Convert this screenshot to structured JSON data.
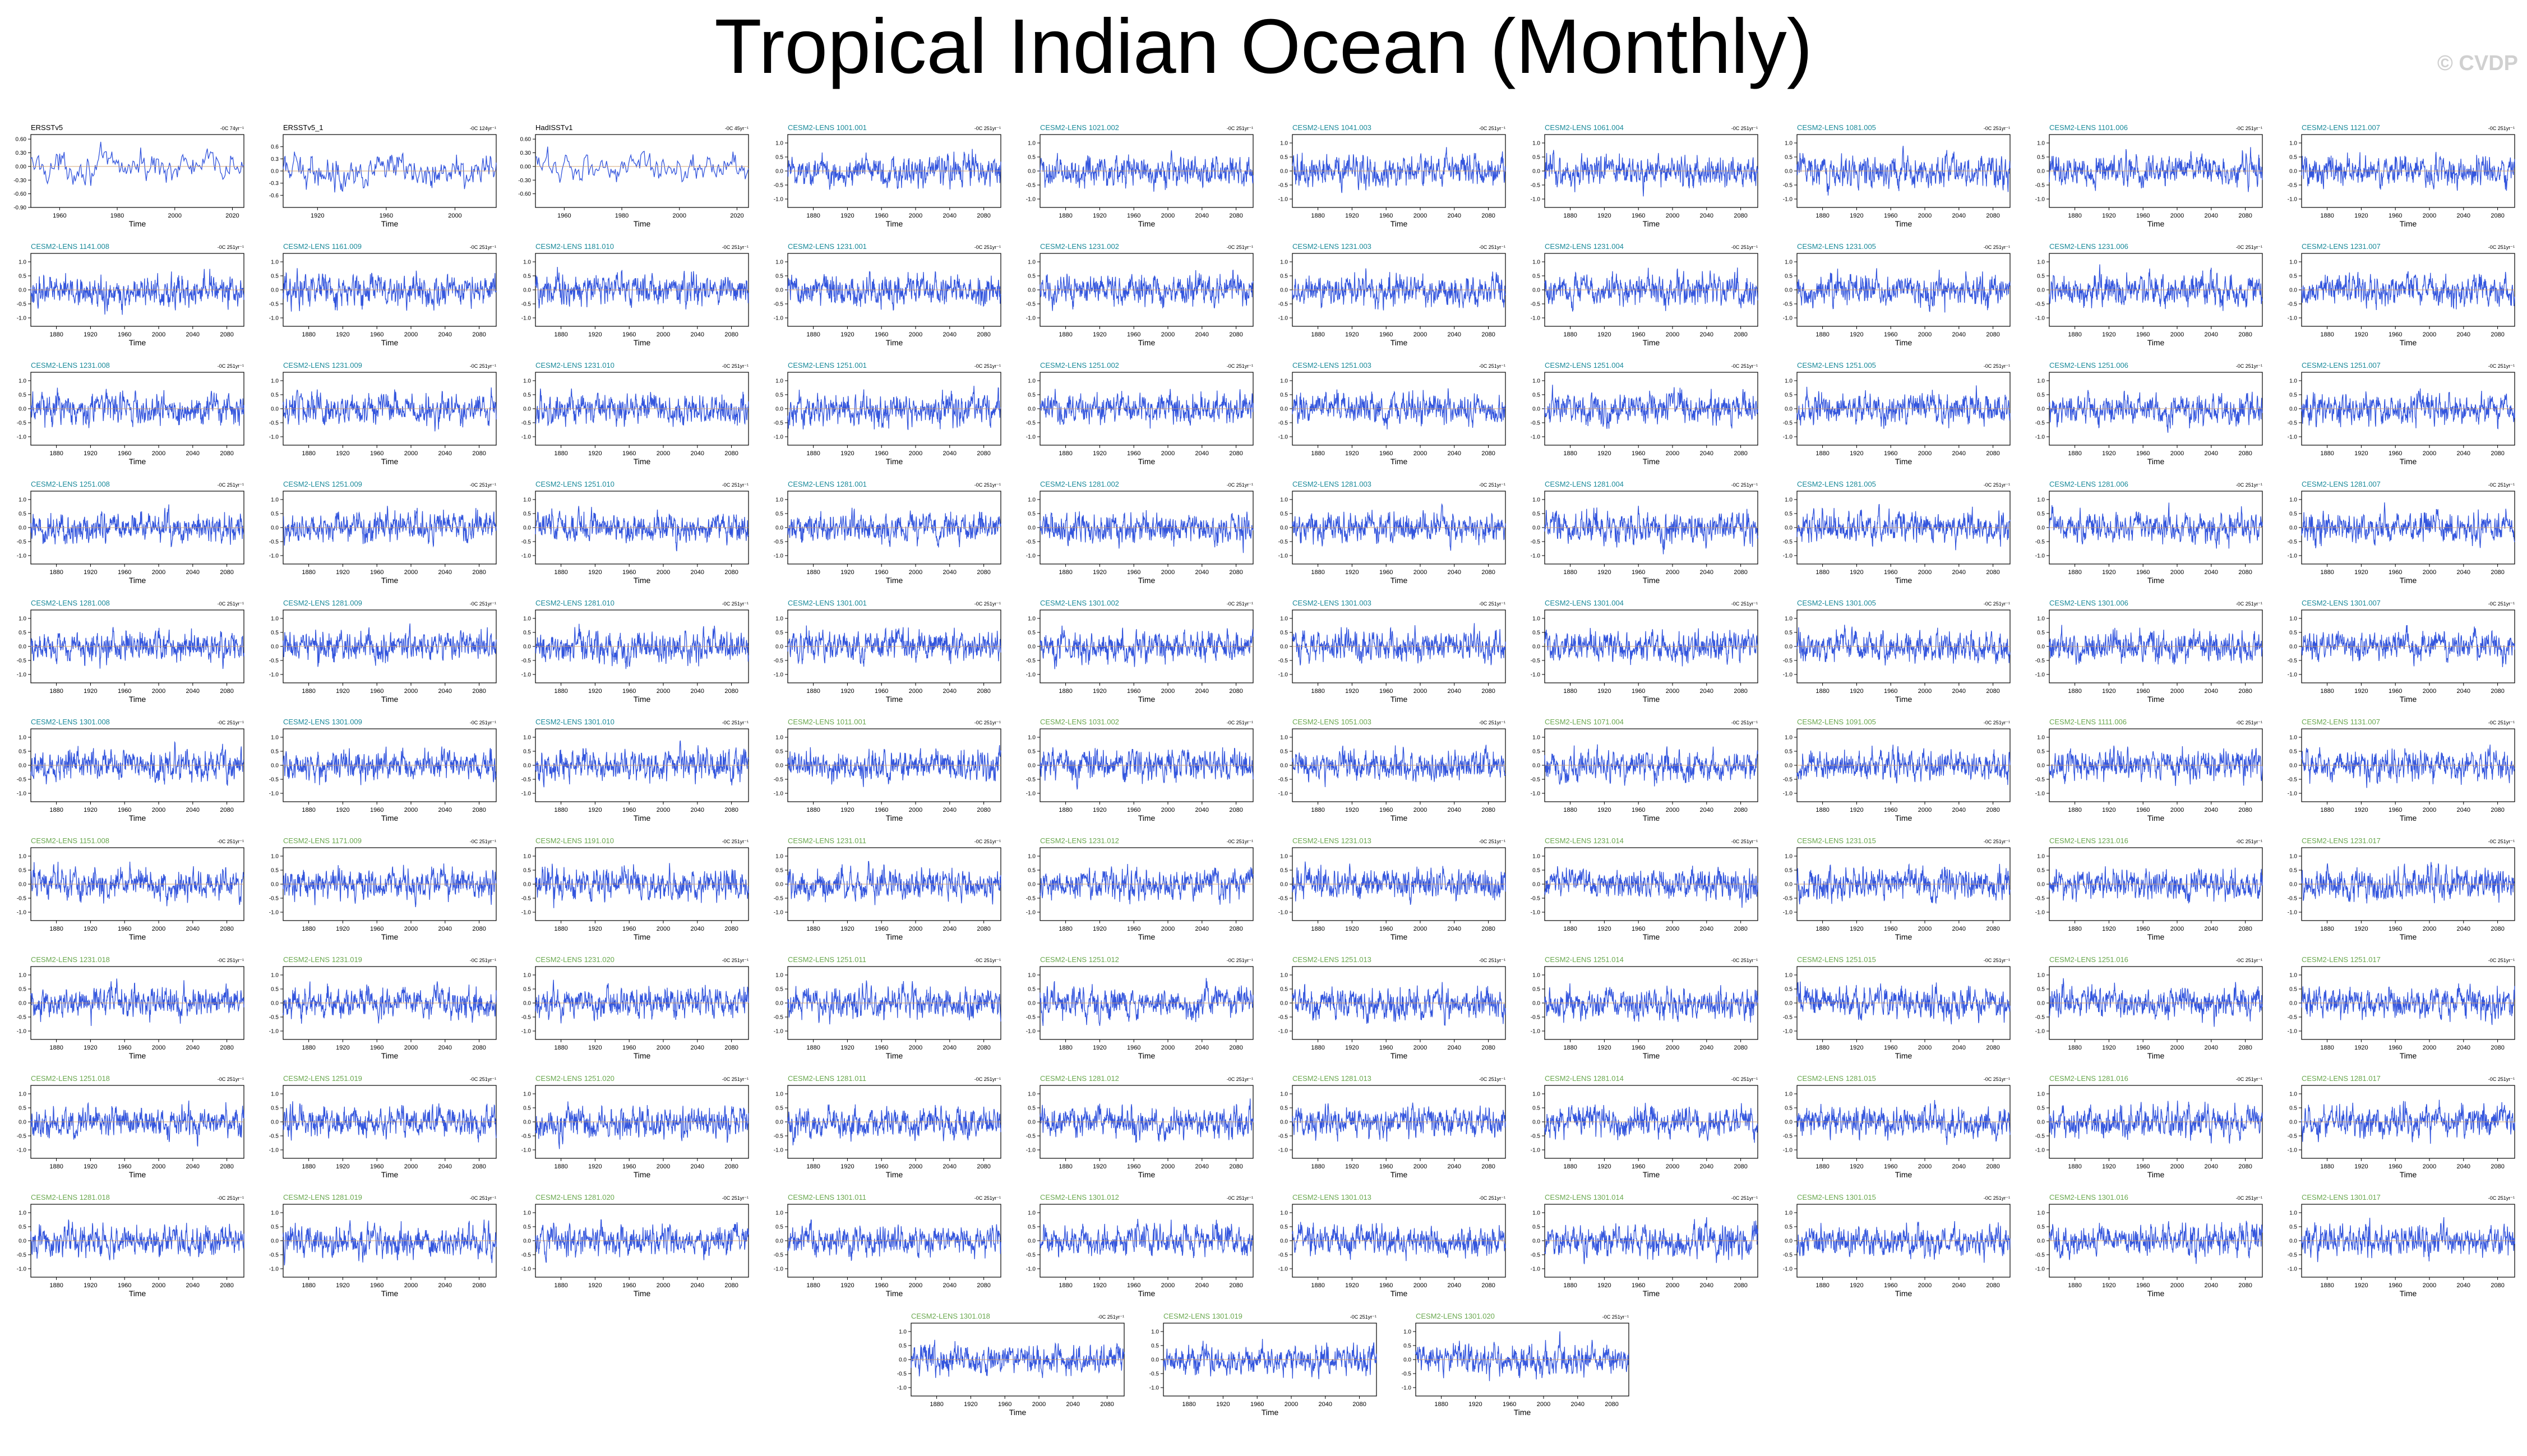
{
  "page": {
    "title": "Tropical Indian Ocean (Monthly)",
    "watermark": "© CVDP"
  },
  "colors": {
    "series_line": "#3355dd",
    "trend_line": "#d9a066",
    "observation_title": "#000000",
    "cmip_title_a": "#1a8a9a",
    "cmip_title_b": "#6aa84f"
  },
  "chart_data": {
    "type": "line",
    "xlabel": "Time",
    "ylabel": "",
    "grid": false,
    "legend": "none",
    "units_note": "°C",
    "panels": [
      {
        "title": "ERSSTv5",
        "trend": "-0C 74yr⁻¹",
        "title_color": "observation",
        "xlim": [
          1950,
          2024
        ],
        "xticks": [
          1960,
          1980,
          2000,
          2020
        ],
        "ylim": [
          -0.9,
          0.7
        ],
        "yticks": [
          "0.60",
          "0.30",
          "0.00",
          "-0.30",
          "-0.60",
          "-0.90"
        ]
      },
      {
        "title": "ERSSTv5_1",
        "trend": "-0C 124yr⁻¹",
        "title_color": "observation",
        "xlim": [
          1900,
          2024
        ],
        "xticks": [
          1920,
          1960,
          2000
        ],
        "ylim": [
          -0.9,
          0.9
        ],
        "yticks": [
          "0.6",
          "0.3",
          "0.0",
          "-0.3",
          "-0.6"
        ]
      },
      {
        "title": "HadISSTv1",
        "trend": "-0C 45yr⁻¹",
        "title_color": "observation",
        "xlim": [
          1950,
          2024
        ],
        "xticks": [
          1960,
          1980,
          2000,
          2020
        ],
        "ylim": [
          -0.9,
          0.7
        ],
        "yticks": [
          "0.60",
          "0.30",
          "0.00",
          "-0.30",
          "-0.60"
        ]
      },
      {
        "title": "CESM2-LENS 1001.001",
        "trend": "-0C 251yr⁻¹",
        "title_color": "cmip_a"
      },
      {
        "title": "CESM2-LENS 1021.002",
        "trend": "-0C 251yr⁻¹",
        "title_color": "cmip_a"
      },
      {
        "title": "CESM2-LENS 1041.003",
        "trend": "-0C 251yr⁻¹",
        "title_color": "cmip_a"
      },
      {
        "title": "CESM2-LENS 1061.004",
        "trend": "-0C 251yr⁻¹",
        "title_color": "cmip_a"
      },
      {
        "title": "CESM2-LENS 1081.005",
        "trend": "-0C 251yr⁻¹",
        "title_color": "cmip_a"
      },
      {
        "title": "CESM2-LENS 1101.006",
        "trend": "-0C 251yr⁻¹",
        "title_color": "cmip_a"
      },
      {
        "title": "CESM2-LENS 1121.007",
        "trend": "-0C 251yr⁻¹",
        "title_color": "cmip_a"
      },
      {
        "title": "CESM2-LENS 1141.008",
        "trend": "-0C 251yr⁻¹",
        "title_color": "cmip_a"
      },
      {
        "title": "CESM2-LENS 1161.009",
        "trend": "-0C 251yr⁻¹",
        "title_color": "cmip_a"
      },
      {
        "title": "CESM2-LENS 1181.010",
        "trend": "-0C 251yr⁻¹",
        "title_color": "cmip_a"
      },
      {
        "title": "CESM2-LENS 1231.001",
        "trend": "-0C 251yr⁻¹",
        "title_color": "cmip_a"
      },
      {
        "title": "CESM2-LENS 1231.002",
        "trend": "-0C 251yr⁻¹",
        "title_color": "cmip_a"
      },
      {
        "title": "CESM2-LENS 1231.003",
        "trend": "-0C 251yr⁻¹",
        "title_color": "cmip_a"
      },
      {
        "title": "CESM2-LENS 1231.004",
        "trend": "-0C 251yr⁻¹",
        "title_color": "cmip_a"
      },
      {
        "title": "CESM2-LENS 1231.005",
        "trend": "-0C 251yr⁻¹",
        "title_color": "cmip_a"
      },
      {
        "title": "CESM2-LENS 1231.006",
        "trend": "-0C 251yr⁻¹",
        "title_color": "cmip_a"
      },
      {
        "title": "CESM2-LENS 1231.007",
        "trend": "-0C 251yr⁻¹",
        "title_color": "cmip_a"
      },
      {
        "title": "CESM2-LENS 1231.008",
        "trend": "-0C 251yr⁻¹",
        "title_color": "cmip_a"
      },
      {
        "title": "CESM2-LENS 1231.009",
        "trend": "-0C 251yr⁻¹",
        "title_color": "cmip_a"
      },
      {
        "title": "CESM2-LENS 1231.010",
        "trend": "-0C 251yr⁻¹",
        "title_color": "cmip_a"
      },
      {
        "title": "CESM2-LENS 1251.001",
        "trend": "-0C 251yr⁻¹",
        "title_color": "cmip_a"
      },
      {
        "title": "CESM2-LENS 1251.002",
        "trend": "-0C 251yr⁻¹",
        "title_color": "cmip_a"
      },
      {
        "title": "CESM2-LENS 1251.003",
        "trend": "-0C 251yr⁻¹",
        "title_color": "cmip_a"
      },
      {
        "title": "CESM2-LENS 1251.004",
        "trend": "-0C 251yr⁻¹",
        "title_color": "cmip_a"
      },
      {
        "title": "CESM2-LENS 1251.005",
        "trend": "-0C 251yr⁻¹",
        "title_color": "cmip_a"
      },
      {
        "title": "CESM2-LENS 1251.006",
        "trend": "-0C 251yr⁻¹",
        "title_color": "cmip_a"
      },
      {
        "title": "CESM2-LENS 1251.007",
        "trend": "-0C 251yr⁻¹",
        "title_color": "cmip_a"
      },
      {
        "title": "CESM2-LENS 1251.008",
        "trend": "-0C 251yr⁻¹",
        "title_color": "cmip_a"
      },
      {
        "title": "CESM2-LENS 1251.009",
        "trend": "-0C 251yr⁻¹",
        "title_color": "cmip_a"
      },
      {
        "title": "CESM2-LENS 1251.010",
        "trend": "-0C 251yr⁻¹",
        "title_color": "cmip_a"
      },
      {
        "title": "CESM2-LENS 1281.001",
        "trend": "-0C 251yr⁻¹",
        "title_color": "cmip_a"
      },
      {
        "title": "CESM2-LENS 1281.002",
        "trend": "-0C 251yr⁻¹",
        "title_color": "cmip_a"
      },
      {
        "title": "CESM2-LENS 1281.003",
        "trend": "-0C 251yr⁻¹",
        "title_color": "cmip_a"
      },
      {
        "title": "CESM2-LENS 1281.004",
        "trend": "-0C 251yr⁻¹",
        "title_color": "cmip_a"
      },
      {
        "title": "CESM2-LENS 1281.005",
        "trend": "-0C 251yr⁻¹",
        "title_color": "cmip_a"
      },
      {
        "title": "CESM2-LENS 1281.006",
        "trend": "-0C 251yr⁻¹",
        "title_color": "cmip_a"
      },
      {
        "title": "CESM2-LENS 1281.007",
        "trend": "-0C 251yr⁻¹",
        "title_color": "cmip_a"
      },
      {
        "title": "CESM2-LENS 1281.008",
        "trend": "-0C 251yr⁻¹",
        "title_color": "cmip_a"
      },
      {
        "title": "CESM2-LENS 1281.009",
        "trend": "-0C 251yr⁻¹",
        "title_color": "cmip_a"
      },
      {
        "title": "CESM2-LENS 1281.010",
        "trend": "-0C 251yr⁻¹",
        "title_color": "cmip_a"
      },
      {
        "title": "CESM2-LENS 1301.001",
        "trend": "-0C 251yr⁻¹",
        "title_color": "cmip_a"
      },
      {
        "title": "CESM2-LENS 1301.002",
        "trend": "-0C 251yr⁻¹",
        "title_color": "cmip_a"
      },
      {
        "title": "CESM2-LENS 1301.003",
        "trend": "-0C 251yr⁻¹",
        "title_color": "cmip_a"
      },
      {
        "title": "CESM2-LENS 1301.004",
        "trend": "-0C 251yr⁻¹",
        "title_color": "cmip_a"
      },
      {
        "title": "CESM2-LENS 1301.005",
        "trend": "-0C 251yr⁻¹",
        "title_color": "cmip_a"
      },
      {
        "title": "CESM2-LENS 1301.006",
        "trend": "-0C 251yr⁻¹",
        "title_color": "cmip_a"
      },
      {
        "title": "CESM2-LENS 1301.007",
        "trend": "-0C 251yr⁻¹",
        "title_color": "cmip_a"
      },
      {
        "title": "CESM2-LENS 1301.008",
        "trend": "-0C 251yr⁻¹",
        "title_color": "cmip_a"
      },
      {
        "title": "CESM2-LENS 1301.009",
        "trend": "-0C 251yr⁻¹",
        "title_color": "cmip_a"
      },
      {
        "title": "CESM2-LENS 1301.010",
        "trend": "-0C 251yr⁻¹",
        "title_color": "cmip_a"
      },
      {
        "title": "CESM2-LENS 1011.001",
        "trend": "-0C 251yr⁻¹",
        "title_color": "cmip_b"
      },
      {
        "title": "CESM2-LENS 1031.002",
        "trend": "-0C 251yr⁻¹",
        "title_color": "cmip_b"
      },
      {
        "title": "CESM2-LENS 1051.003",
        "trend": "-0C 251yr⁻¹",
        "title_color": "cmip_b"
      },
      {
        "title": "CESM2-LENS 1071.004",
        "trend": "-0C 251yr⁻¹",
        "title_color": "cmip_b"
      },
      {
        "title": "CESM2-LENS 1091.005",
        "trend": "-0C 251yr⁻¹",
        "title_color": "cmip_b"
      },
      {
        "title": "CESM2-LENS 1111.006",
        "trend": "-0C 251yr⁻¹",
        "title_color": "cmip_b"
      },
      {
        "title": "CESM2-LENS 1131.007",
        "trend": "-0C 251yr⁻¹",
        "title_color": "cmip_b"
      },
      {
        "title": "CESM2-LENS 1151.008",
        "trend": "-0C 251yr⁻¹",
        "title_color": "cmip_b"
      },
      {
        "title": "CESM2-LENS 1171.009",
        "trend": "-0C 251yr⁻¹",
        "title_color": "cmip_b"
      },
      {
        "title": "CESM2-LENS 1191.010",
        "trend": "-0C 251yr⁻¹",
        "title_color": "cmip_b"
      },
      {
        "title": "CESM2-LENS 1231.011",
        "trend": "-0C 251yr⁻¹",
        "title_color": "cmip_b"
      },
      {
        "title": "CESM2-LENS 1231.012",
        "trend": "-0C 251yr⁻¹",
        "title_color": "cmip_b"
      },
      {
        "title": "CESM2-LENS 1231.013",
        "trend": "-0C 251yr⁻¹",
        "title_color": "cmip_b"
      },
      {
        "title": "CESM2-LENS 1231.014",
        "trend": "-0C 251yr⁻¹",
        "title_color": "cmip_b"
      },
      {
        "title": "CESM2-LENS 1231.015",
        "trend": "-0C 251yr⁻¹",
        "title_color": "cmip_b"
      },
      {
        "title": "CESM2-LENS 1231.016",
        "trend": "-0C 251yr⁻¹",
        "title_color": "cmip_b"
      },
      {
        "title": "CESM2-LENS 1231.017",
        "trend": "-0C 251yr⁻¹",
        "title_color": "cmip_b"
      },
      {
        "title": "CESM2-LENS 1231.018",
        "trend": "-0C 251yr⁻¹",
        "title_color": "cmip_b"
      },
      {
        "title": "CESM2-LENS 1231.019",
        "trend": "-0C 251yr⁻¹",
        "title_color": "cmip_b"
      },
      {
        "title": "CESM2-LENS 1231.020",
        "trend": "-0C 251yr⁻¹",
        "title_color": "cmip_b"
      },
      {
        "title": "CESM2-LENS 1251.011",
        "trend": "-0C 251yr⁻¹",
        "title_color": "cmip_b"
      },
      {
        "title": "CESM2-LENS 1251.012",
        "trend": "-0C 251yr⁻¹",
        "title_color": "cmip_b"
      },
      {
        "title": "CESM2-LENS 1251.013",
        "trend": "-0C 251yr⁻¹",
        "title_color": "cmip_b"
      },
      {
        "title": "CESM2-LENS 1251.014",
        "trend": "-0C 251yr⁻¹",
        "title_color": "cmip_b"
      },
      {
        "title": "CESM2-LENS 1251.015",
        "trend": "-0C 251yr⁻¹",
        "title_color": "cmip_b"
      },
      {
        "title": "CESM2-LENS 1251.016",
        "trend": "-0C 251yr⁻¹",
        "title_color": "cmip_b"
      },
      {
        "title": "CESM2-LENS 1251.017",
        "trend": "-0C 251yr⁻¹",
        "title_color": "cmip_b"
      },
      {
        "title": "CESM2-LENS 1251.018",
        "trend": "-0C 251yr⁻¹",
        "title_color": "cmip_b"
      },
      {
        "title": "CESM2-LENS 1251.019",
        "trend": "-0C 251yr⁻¹",
        "title_color": "cmip_b"
      },
      {
        "title": "CESM2-LENS 1251.020",
        "trend": "-0C 251yr⁻¹",
        "title_color": "cmip_b"
      },
      {
        "title": "CESM2-LENS 1281.011",
        "trend": "-0C 251yr⁻¹",
        "title_color": "cmip_b"
      },
      {
        "title": "CESM2-LENS 1281.012",
        "trend": "-0C 251yr⁻¹",
        "title_color": "cmip_b"
      },
      {
        "title": "CESM2-LENS 1281.013",
        "trend": "-0C 251yr⁻¹",
        "title_color": "cmip_b"
      },
      {
        "title": "CESM2-LENS 1281.014",
        "trend": "-0C 251yr⁻¹",
        "title_color": "cmip_b"
      },
      {
        "title": "CESM2-LENS 1281.015",
        "trend": "-0C 251yr⁻¹",
        "title_color": "cmip_b"
      },
      {
        "title": "CESM2-LENS 1281.016",
        "trend": "-0C 251yr⁻¹",
        "title_color": "cmip_b"
      },
      {
        "title": "CESM2-LENS 1281.017",
        "trend": "-0C 251yr⁻¹",
        "title_color": "cmip_b"
      },
      {
        "title": "CESM2-LENS 1281.018",
        "trend": "-0C 251yr⁻¹",
        "title_color": "cmip_b"
      },
      {
        "title": "CESM2-LENS 1281.019",
        "trend": "-0C 251yr⁻¹",
        "title_color": "cmip_b"
      },
      {
        "title": "CESM2-LENS 1281.020",
        "trend": "-0C 251yr⁻¹",
        "title_color": "cmip_b"
      },
      {
        "title": "CESM2-LENS 1301.011",
        "trend": "-0C 251yr⁻¹",
        "title_color": "cmip_b"
      },
      {
        "title": "CESM2-LENS 1301.012",
        "trend": "-0C 251yr⁻¹",
        "title_color": "cmip_b"
      },
      {
        "title": "CESM2-LENS 1301.013",
        "trend": "-0C 251yr⁻¹",
        "title_color": "cmip_b"
      },
      {
        "title": "CESM2-LENS 1301.014",
        "trend": "-0C 251yr⁻¹",
        "title_color": "cmip_b"
      },
      {
        "title": "CESM2-LENS 1301.015",
        "trend": "-0C 251yr⁻¹",
        "title_color": "cmip_b"
      },
      {
        "title": "CESM2-LENS 1301.016",
        "trend": "-0C 251yr⁻¹",
        "title_color": "cmip_b"
      },
      {
        "title": "CESM2-LENS 1301.017",
        "trend": "-0C 251yr⁻¹",
        "title_color": "cmip_b"
      },
      {
        "title": "CESM2-LENS 1301.018",
        "trend": "-0C 251yr⁻¹",
        "title_color": "cmip_b"
      },
      {
        "title": "CESM2-LENS 1301.019",
        "trend": "-0C 251yr⁻¹",
        "title_color": "cmip_b"
      },
      {
        "title": "CESM2-LENS 1301.020",
        "trend": "-0C 251yr⁻¹",
        "title_color": "cmip_b"
      }
    ],
    "default_panel": {
      "xlim": [
        1850,
        2100
      ],
      "xticks": [
        1880,
        1920,
        1960,
        2000,
        2040,
        2080
      ],
      "ylim": [
        -1.3,
        1.3
      ],
      "yticks": [
        "1.0",
        "0.5",
        "0.0",
        "-0.5",
        "-1.0"
      ],
      "series_amplitude": 0.45,
      "trend_color": "#d9a066"
    }
  }
}
